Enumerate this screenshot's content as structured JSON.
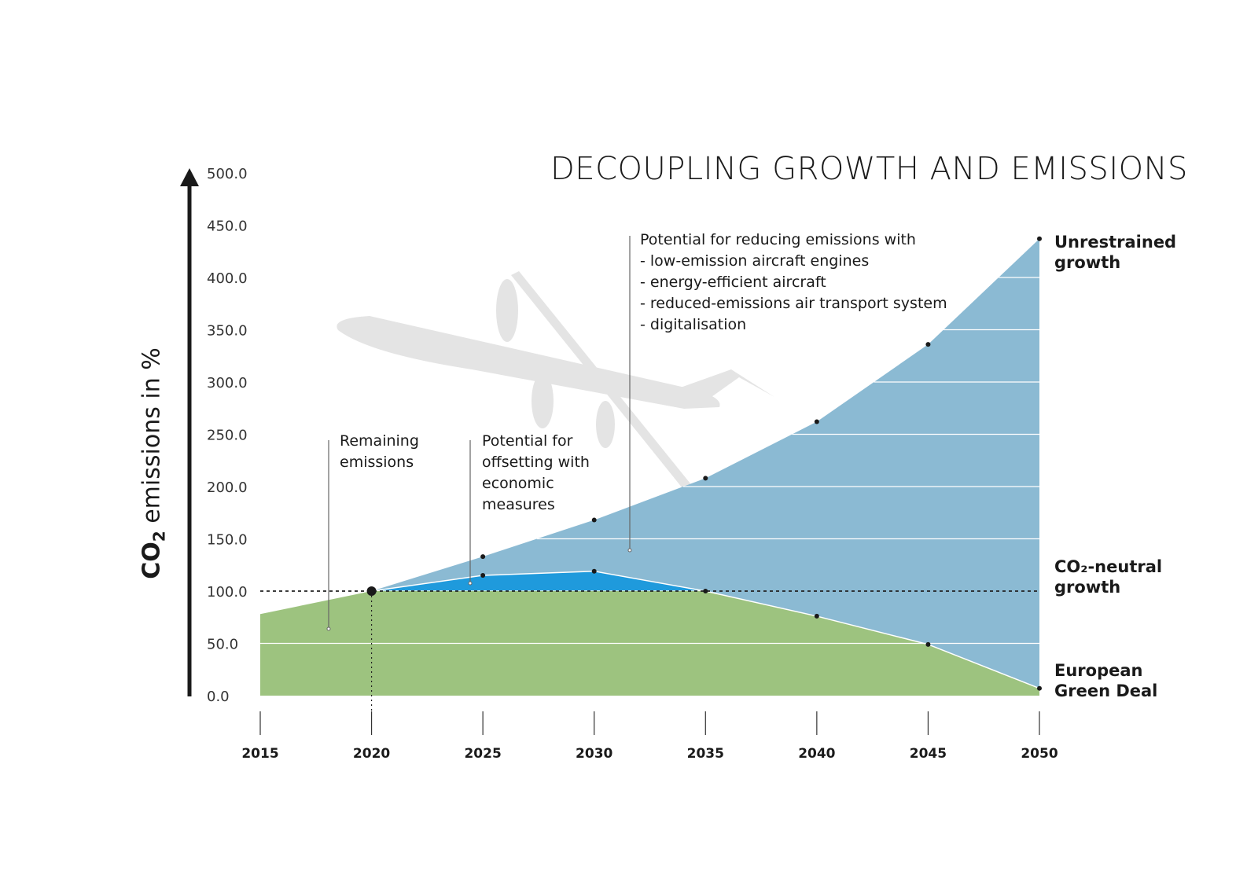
{
  "chart_data": {
    "type": "area",
    "title": "DECOUPLING GROWTH AND EMISSIONS",
    "ylabel_prefix": "CO",
    "ylabel_sub": "2",
    "ylabel_suffix": " emissions in %",
    "ylim": [
      0,
      500
    ],
    "yticks": [
      "0.0",
      "50.0",
      "100.0",
      "150.0",
      "200.0",
      "250.0",
      "300.0",
      "350.0",
      "400.0",
      "450.0",
      "500.0"
    ],
    "x": [
      2015,
      2020,
      2025,
      2030,
      2035,
      2040,
      2045,
      2050
    ],
    "xticks": [
      "2015",
      "2020",
      "2025",
      "2030",
      "2035",
      "2040",
      "2045",
      "2050"
    ],
    "grid": true,
    "reference_line": 100,
    "series": [
      {
        "name": "Unrestrained growth",
        "color": "#8bbad3",
        "points": [
          [
            2020,
            100
          ],
          [
            2025,
            133
          ],
          [
            2030,
            168
          ],
          [
            2035,
            208
          ],
          [
            2040,
            262
          ],
          [
            2045,
            336
          ],
          [
            2050,
            437
          ]
        ]
      },
      {
        "name": "Potential for offsetting with economic measures",
        "color": "#1f9adc",
        "points": [
          [
            2020,
            100
          ],
          [
            2025,
            115
          ],
          [
            2030,
            119
          ],
          [
            2035,
            100
          ]
        ]
      },
      {
        "name": "European Green Deal",
        "color": "#9dc37f",
        "points": [
          [
            2015,
            78
          ],
          [
            2020,
            100
          ],
          [
            2025,
            100
          ],
          [
            2030,
            100
          ],
          [
            2035,
            100
          ],
          [
            2040,
            76
          ],
          [
            2045,
            49
          ],
          [
            2050,
            7
          ]
        ]
      }
    ],
    "end_labels": {
      "unrestrained": "Unrestrained\ngrowth",
      "neutral": "CO₂-neutral\ngrowth",
      "green": "European\nGreen Deal"
    },
    "annotations": {
      "remaining": "Remaining\nemissions",
      "offsetting": "Potential for\noffsetting with\neconomic\nmeasures",
      "reducing": "Potential for reducing emissions with\n- low-emission aircraft engines\n- energy-efficient aircraft\n- reduced-emissions air transport system\n- digitalisation"
    }
  }
}
